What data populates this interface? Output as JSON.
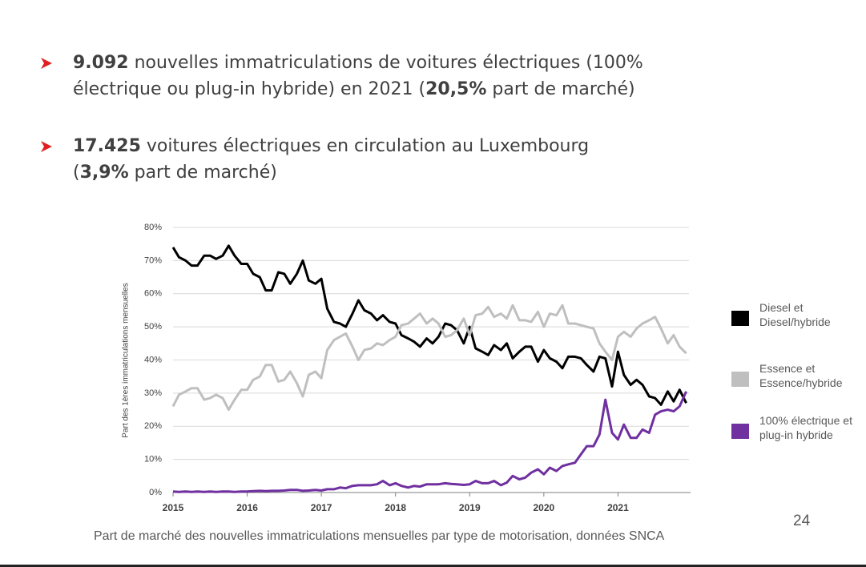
{
  "bullets": [
    [
      "9.092",
      " nouvelles immatriculations de voitures électriques (100% électrique ou plug-in hybride) en 2021 (",
      "20,5%",
      " part de marché)"
    ],
    [
      "17.425",
      " voitures électriques en circulation au Luxembourg (",
      "3,9%",
      " part de marché)"
    ]
  ],
  "caption": "Part de marché des nouvelles immatriculations mensuelles par type de motorisation, données SNCA",
  "page_number": "24",
  "chart_data": {
    "type": "line",
    "y_label": "Part des 1ères immatriculations mensuelles",
    "x": [
      2015.0,
      2015.08,
      2015.17,
      2015.25,
      2015.33,
      2015.42,
      2015.5,
      2015.58,
      2015.67,
      2015.75,
      2015.83,
      2015.92,
      2016.0,
      2016.08,
      2016.17,
      2016.25,
      2016.33,
      2016.42,
      2016.5,
      2016.58,
      2016.67,
      2016.75,
      2016.83,
      2016.92,
      2017.0,
      2017.08,
      2017.17,
      2017.25,
      2017.33,
      2017.42,
      2017.5,
      2017.58,
      2017.67,
      2017.75,
      2017.83,
      2017.92,
      2018.0,
      2018.08,
      2018.17,
      2018.25,
      2018.33,
      2018.42,
      2018.5,
      2018.58,
      2018.67,
      2018.75,
      2018.83,
      2018.92,
      2019.0,
      2019.08,
      2019.17,
      2019.25,
      2019.33,
      2019.42,
      2019.5,
      2019.58,
      2019.67,
      2019.75,
      2019.83,
      2019.92,
      2020.0,
      2020.08,
      2020.17,
      2020.25,
      2020.33,
      2020.42,
      2020.5,
      2020.58,
      2020.67,
      2020.75,
      2020.83,
      2020.92,
      2021.0,
      2021.08,
      2021.17,
      2021.25,
      2021.33,
      2021.42,
      2021.5,
      2021.58,
      2021.67,
      2021.75,
      2021.83,
      2021.92
    ],
    "series": [
      {
        "name": "Diesel et Diesel/hybride",
        "color": "#000000",
        "values": [
          74,
          71,
          70,
          68.5,
          68.5,
          71.5,
          71.5,
          70.5,
          71.5,
          74.5,
          71.5,
          69,
          69,
          66,
          65,
          61,
          61,
          66.5,
          66,
          63,
          66,
          70,
          64,
          63,
          64.5,
          55.5,
          51.5,
          51,
          50,
          54,
          58,
          55,
          54,
          52,
          53.5,
          51.5,
          51,
          47.5,
          46.5,
          45.5,
          44,
          46.5,
          45,
          47,
          51,
          50.5,
          49,
          45,
          50,
          43.5,
          42.5,
          41.5,
          44.5,
          43,
          45,
          40.5,
          42.5,
          44,
          44,
          39.5,
          43,
          40.5,
          39.5,
          37.5,
          41,
          41,
          40.5,
          38.5,
          36.5,
          41,
          40.5,
          32,
          42.5,
          35.5,
          32.5,
          34,
          32.5,
          29,
          28.5,
          26.5,
          30.5,
          27.5,
          31,
          27
        ]
      },
      {
        "name": "Essence et Essence/hybride",
        "color": "#bfbfbf",
        "values": [
          26,
          29.5,
          30.5,
          31.5,
          31.5,
          28,
          28.5,
          29.5,
          28.5,
          25,
          28,
          31,
          31,
          34,
          35,
          38.5,
          38.5,
          33.5,
          34,
          36.5,
          33,
          29,
          35.5,
          36.5,
          34.5,
          43,
          46,
          47,
          48,
          44,
          40,
          43,
          43.5,
          45,
          44.5,
          46,
          47,
          50.5,
          51,
          52.5,
          54,
          51,
          52.5,
          51,
          47,
          47.5,
          49,
          52.5,
          47.5,
          53.5,
          54,
          56,
          53,
          54,
          52.5,
          56.5,
          52,
          52,
          51.5,
          54.5,
          50,
          54,
          53.5,
          56.5,
          51,
          51,
          50.5,
          50,
          49.5,
          45,
          42.5,
          40,
          47,
          48.5,
          47,
          49.5,
          51,
          52,
          53,
          49.5,
          45,
          47.5,
          44,
          42
        ]
      },
      {
        "name": "100% électrique et plug-in hybride",
        "color": "#7030a0",
        "values": [
          0.3,
          0.2,
          0.3,
          0.2,
          0.3,
          0.2,
          0.3,
          0.2,
          0.3,
          0.3,
          0.2,
          0.3,
          0.3,
          0.4,
          0.5,
          0.4,
          0.5,
          0.5,
          0.6,
          0.8,
          0.8,
          0.5,
          0.6,
          0.8,
          0.6,
          1,
          1,
          1.5,
          1.3,
          2,
          2.2,
          2.2,
          2.2,
          2.5,
          3.5,
          2.2,
          2.8,
          2,
          1.5,
          2,
          1.8,
          2.5,
          2.5,
          2.5,
          2.8,
          2.6,
          2.5,
          2.3,
          2.5,
          3.5,
          2.8,
          2.8,
          3.5,
          2.2,
          3,
          5,
          4,
          4.5,
          6,
          7,
          5.5,
          7.5,
          6.5,
          8,
          8.5,
          9,
          11.5,
          14,
          14,
          17.5,
          28,
          18,
          16,
          20.5,
          16.5,
          16.5,
          19,
          18,
          23.5,
          24.5,
          25,
          24.5,
          26,
          30.5
        ]
      }
    ],
    "xlim": [
      2015,
      2022
    ],
    "xticks": [
      2015,
      2016,
      2017,
      2018,
      2019,
      2020,
      2021
    ],
    "ylim": [
      0,
      80
    ],
    "yticks": [
      {
        "value": 0,
        "label": "0%"
      },
      {
        "value": 10,
        "label": "10%"
      },
      {
        "value": 20,
        "label": "20%"
      },
      {
        "value": 30,
        "label": "30%"
      },
      {
        "value": 40,
        "label": "40%"
      },
      {
        "value": 50,
        "label": "50%"
      },
      {
        "value": 60,
        "label": "60%"
      },
      {
        "value": 70,
        "label": "70%"
      },
      {
        "value": 80,
        "label": "80%"
      }
    ],
    "grid": true,
    "legend": "right"
  }
}
